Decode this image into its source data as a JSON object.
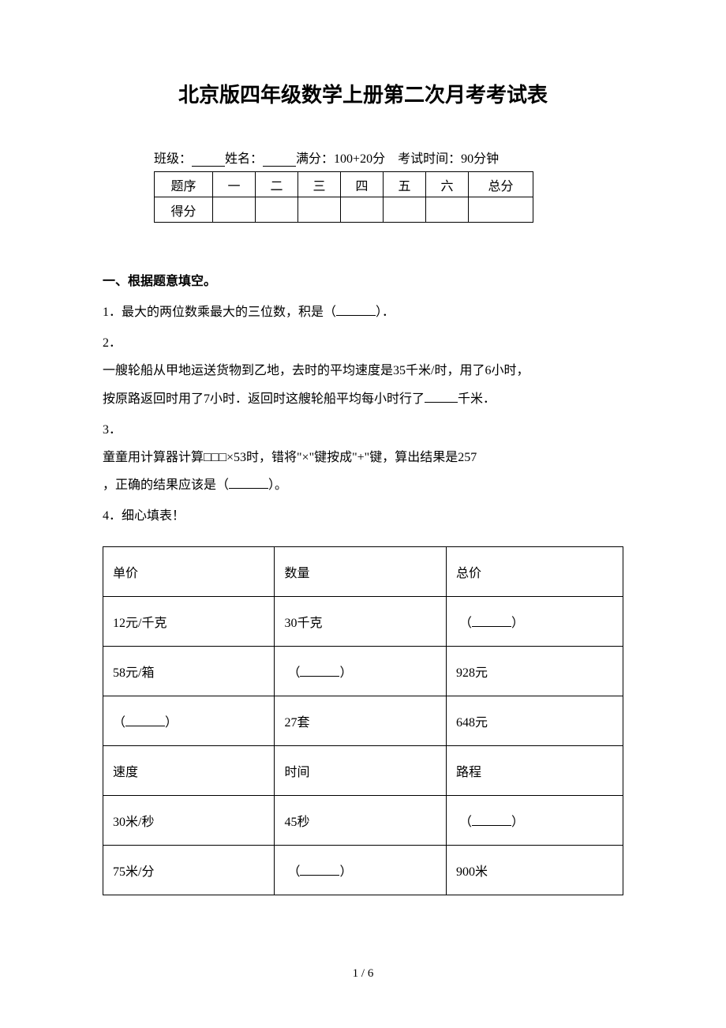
{
  "title": "北京版四年级数学上册第二次月考考试表",
  "meta": {
    "class_label": "班级：",
    "name_label": "姓名：",
    "full_marks_label": "满分：",
    "full_marks_value": "100+20分",
    "exam_time_label": "考试时间：",
    "exam_time_value": "90分钟"
  },
  "score_table": {
    "row1_label": "题序",
    "cols": [
      "一",
      "二",
      "三",
      "四",
      "五",
      "六"
    ],
    "total_label": "总分",
    "row2_label": "得分"
  },
  "section1_heading": "一、根据题意填空。",
  "q1": {
    "label": "1．",
    "text_before": "最大的两位数乘最大的三位数，积是（",
    "text_after": "）．"
  },
  "q2": {
    "label": "2．",
    "line1": "一艘轮船从甲地运送货物到乙地，去时的平均速度是35千米/时，用了6小时，",
    "line2_before": "按原路返回时用了7小时．返回时这艘轮船平均每小时行了",
    "line2_after": "千米．"
  },
  "q3": {
    "label": "3．",
    "line1": "童童用计算器计算□□□×53时，错将\"×\"键按成\"+\"键，算出结果是257",
    "line2_before": "，正确的结果应该是（",
    "line2_after": "）。"
  },
  "q4": {
    "label": "4．",
    "text": "细心填表！"
  },
  "data_table": {
    "rows": [
      {
        "c1": "单价",
        "c2": "数量",
        "c3": "总价",
        "blank": null
      },
      {
        "c1": "12元/千克",
        "c2": "30千克",
        "c3": null,
        "blank": "c3"
      },
      {
        "c1": "58元/箱",
        "c2": null,
        "c3": "928元",
        "blank": "c2"
      },
      {
        "c1": null,
        "c2": "27套",
        "c3": "648元",
        "blank": "c1"
      },
      {
        "c1": "速度",
        "c2": "时间",
        "c3": "路程",
        "blank": null
      },
      {
        "c1": "30米/秒",
        "c2": "45秒",
        "c3": null,
        "blank": "c3"
      },
      {
        "c1": "75米/分",
        "c2": null,
        "c3": "900米",
        "blank": "c2"
      }
    ]
  },
  "footer": "1 / 6",
  "colors": {
    "background": "#ffffff",
    "text": "#000000",
    "border": "#000000"
  },
  "typography": {
    "title_fontsize": 26,
    "body_fontsize": 16,
    "font_family": "SimSun"
  }
}
